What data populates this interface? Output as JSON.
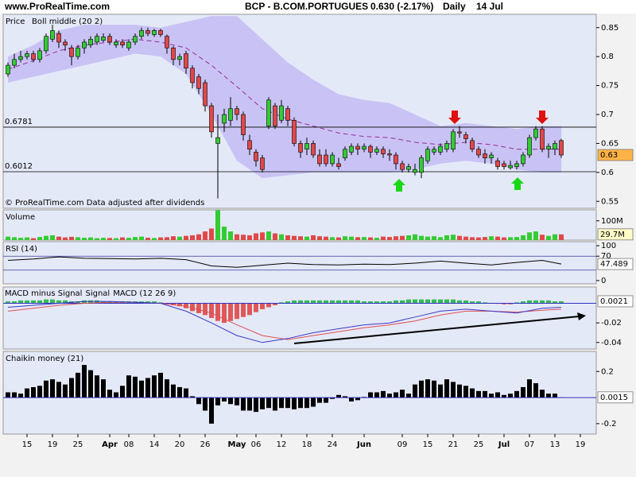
{
  "header": {
    "site": "www.ProRealTime.com",
    "instrument": "BCP - B.COM.PORTUGUES",
    "last": "0.630 (-2.17%)",
    "period": "Daily",
    "date": "14 Jul"
  },
  "chart_data": [
    {
      "type": "candlestick",
      "title": "Price",
      "subtitle": "Boll middle (20 2)",
      "note": "© ProRealTime.com  Data adjusted after dividends",
      "open": [
        0.77,
        0.785,
        0.795,
        0.8,
        0.805,
        0.795,
        0.81,
        0.83,
        0.84,
        0.825,
        0.815,
        0.8,
        0.815,
        0.82,
        0.825,
        0.828,
        0.835,
        0.82,
        0.825,
        0.815,
        0.825,
        0.835,
        0.845,
        0.838,
        0.845,
        0.835,
        0.815,
        0.795,
        0.805,
        0.78,
        0.765,
        0.755,
        0.715,
        0.65,
        0.685,
        0.69,
        0.71,
        0.7,
        0.655,
        0.635,
        0.625,
        0.68,
        0.715,
        0.69,
        0.71,
        0.69,
        0.65,
        0.64,
        0.65,
        0.63,
        0.63,
        0.615,
        0.615,
        0.625,
        0.635,
        0.645,
        0.64,
        0.645,
        0.635,
        0.64,
        0.632,
        0.63,
        0.615,
        0.605,
        0.6,
        0.6,
        0.62,
        0.635,
        0.635,
        0.64,
        0.64,
        0.67,
        0.665,
        0.655,
        0.64,
        0.632,
        0.625,
        0.62,
        0.615,
        0.608,
        0.61,
        0.615,
        0.63,
        0.66,
        0.675,
        0.64,
        0.64,
        0.655
      ],
      "high": [
        0.79,
        0.805,
        0.81,
        0.81,
        0.81,
        0.815,
        0.84,
        0.855,
        0.845,
        0.83,
        0.82,
        0.82,
        0.83,
        0.835,
        0.84,
        0.84,
        0.84,
        0.83,
        0.83,
        0.83,
        0.84,
        0.85,
        0.85,
        0.848,
        0.848,
        0.838,
        0.818,
        0.805,
        0.81,
        0.785,
        0.77,
        0.76,
        0.72,
        0.7,
        0.71,
        0.73,
        0.715,
        0.705,
        0.665,
        0.64,
        0.63,
        0.73,
        0.72,
        0.725,
        0.715,
        0.695,
        0.655,
        0.66,
        0.655,
        0.64,
        0.64,
        0.635,
        0.625,
        0.645,
        0.65,
        0.65,
        0.65,
        0.648,
        0.645,
        0.645,
        0.64,
        0.635,
        0.62,
        0.615,
        0.615,
        0.63,
        0.645,
        0.645,
        0.65,
        0.655,
        0.675,
        0.68,
        0.67,
        0.66,
        0.645,
        0.64,
        0.635,
        0.625,
        0.62,
        0.62,
        0.62,
        0.635,
        0.665,
        0.68,
        0.68,
        0.65,
        0.655,
        0.658
      ],
      "low": [
        0.765,
        0.78,
        0.79,
        0.795,
        0.79,
        0.79,
        0.805,
        0.825,
        0.815,
        0.81,
        0.785,
        0.795,
        0.805,
        0.815,
        0.82,
        0.825,
        0.82,
        0.815,
        0.815,
        0.81,
        0.82,
        0.83,
        0.835,
        0.834,
        0.834,
        0.805,
        0.785,
        0.785,
        0.77,
        0.745,
        0.735,
        0.705,
        0.66,
        0.555,
        0.67,
        0.68,
        0.69,
        0.655,
        0.63,
        0.61,
        0.6,
        0.675,
        0.675,
        0.685,
        0.68,
        0.645,
        0.625,
        0.63,
        0.625,
        0.61,
        0.61,
        0.61,
        0.605,
        0.62,
        0.63,
        0.63,
        0.635,
        0.625,
        0.63,
        0.625,
        0.62,
        0.605,
        0.6,
        0.6,
        0.595,
        0.59,
        0.615,
        0.63,
        0.63,
        0.635,
        0.635,
        0.66,
        0.65,
        0.635,
        0.625,
        0.615,
        0.615,
        0.605,
        0.605,
        0.605,
        0.605,
        0.61,
        0.625,
        0.655,
        0.635,
        0.625,
        0.63,
        0.625
      ],
      "close": [
        0.785,
        0.795,
        0.8,
        0.805,
        0.795,
        0.81,
        0.835,
        0.845,
        0.825,
        0.82,
        0.8,
        0.815,
        0.825,
        0.83,
        0.835,
        0.834,
        0.825,
        0.825,
        0.82,
        0.825,
        0.835,
        0.845,
        0.84,
        0.845,
        0.838,
        0.815,
        0.795,
        0.8,
        0.78,
        0.755,
        0.745,
        0.715,
        0.67,
        0.66,
        0.7,
        0.71,
        0.7,
        0.665,
        0.64,
        0.62,
        0.605,
        0.725,
        0.68,
        0.715,
        0.69,
        0.65,
        0.635,
        0.65,
        0.63,
        0.615,
        0.615,
        0.63,
        0.61,
        0.64,
        0.645,
        0.64,
        0.645,
        0.635,
        0.64,
        0.632,
        0.63,
        0.615,
        0.605,
        0.61,
        0.605,
        0.625,
        0.64,
        0.64,
        0.645,
        0.65,
        0.67,
        0.668,
        0.658,
        0.64,
        0.63,
        0.625,
        0.63,
        0.61,
        0.61,
        0.612,
        0.615,
        0.63,
        0.66,
        0.675,
        0.64,
        0.645,
        0.65,
        0.63
      ],
      "up_color": "#33cc33",
      "down_color": "#e04848",
      "bands": {
        "x": [
          0,
          4,
          8,
          12,
          16,
          20,
          24,
          28,
          32,
          36,
          40,
          44,
          48,
          52,
          56,
          60,
          64,
          68,
          72,
          76,
          80,
          84,
          87
        ],
        "upper": [
          0.8,
          0.82,
          0.845,
          0.855,
          0.855,
          0.855,
          0.85,
          0.86,
          0.87,
          0.87,
          0.83,
          0.79,
          0.76,
          0.735,
          0.725,
          0.72,
          0.7,
          0.68,
          0.685,
          0.68,
          0.675,
          0.68,
          0.68
        ],
        "middle": [
          0.778,
          0.793,
          0.81,
          0.82,
          0.825,
          0.83,
          0.825,
          0.815,
          0.785,
          0.748,
          0.71,
          0.692,
          0.68,
          0.668,
          0.662,
          0.66,
          0.652,
          0.648,
          0.652,
          0.648,
          0.64,
          0.64,
          0.64
        ],
        "lower": [
          0.755,
          0.765,
          0.775,
          0.785,
          0.795,
          0.805,
          0.8,
          0.77,
          0.7,
          0.62,
          0.59,
          0.595,
          0.6,
          0.6,
          0.6,
          0.6,
          0.605,
          0.615,
          0.62,
          0.615,
          0.605,
          0.6,
          0.6
        ],
        "fill": "#c9c3f5",
        "middle_color": "#9a2a9a"
      },
      "hlines": [
        0.6781,
        0.6012
      ],
      "last_label": "0.63",
      "ylim": [
        0.538,
        0.873
      ],
      "yticks": [
        0.55,
        0.6,
        0.65,
        0.7,
        0.75,
        0.8,
        0.85
      ]
    },
    {
      "type": "bar",
      "title": "Volume",
      "title_color": "#e04848",
      "values": [
        18,
        15,
        12,
        14,
        10,
        16,
        22,
        25,
        18,
        14,
        17,
        15,
        12,
        14,
        10,
        12,
        11,
        10,
        14,
        12,
        16,
        18,
        12,
        11,
        14,
        15,
        20,
        18,
        22,
        25,
        30,
        45,
        60,
        155,
        70,
        45,
        30,
        28,
        25,
        35,
        40,
        45,
        35,
        30,
        25,
        22,
        20,
        18,
        25,
        20,
        18,
        15,
        14,
        20,
        18,
        15,
        16,
        14,
        12,
        18,
        16,
        20,
        22,
        25,
        30,
        22,
        18,
        20,
        15,
        25,
        28,
        22,
        18,
        15,
        14,
        16,
        20,
        18,
        14,
        15,
        16,
        25,
        40,
        45,
        28,
        22,
        30,
        29.7
      ],
      "up_color": "#33cc33",
      "down_color": "#e04848",
      "last_label": "29.7M",
      "ylim": [
        0,
        157
      ],
      "yticks": [
        {
          "value": 100,
          "label": "100M"
        }
      ]
    },
    {
      "type": "line",
      "title": "RSI (14)",
      "color": "#000000",
      "x": [
        0,
        4,
        8,
        12,
        16,
        20,
        24,
        28,
        32,
        36,
        40,
        44,
        48,
        52,
        56,
        60,
        64,
        68,
        72,
        76,
        80,
        84,
        87
      ],
      "values": [
        58,
        62,
        68,
        64,
        63,
        62,
        64,
        60,
        42,
        38,
        44,
        50,
        46,
        45,
        47,
        46,
        50,
        56,
        50,
        45,
        52,
        58,
        47.489
      ],
      "hlines": [
        70,
        30
      ],
      "last_label": "47.489",
      "ylim": [
        -9.3,
        111.6
      ],
      "yticks": [
        0,
        70,
        100
      ]
    },
    {
      "type": "macd",
      "zero_line": true,
      "series": [
        {
          "name": "MACD minus Signal",
          "color": "#33bb55",
          "negative_color": "#e05858",
          "values": [
            0.002,
            0.002,
            0.003,
            0.003,
            0.003,
            0.003,
            0.004,
            0.004,
            0.003,
            0.003,
            0.002,
            0.002,
            0.003,
            0.003,
            0.003,
            0.002,
            0.002,
            0.002,
            0.002,
            0.002,
            0.002,
            0.002,
            0.002,
            0.002,
            0.001,
            -0.001,
            -0.002,
            -0.003,
            -0.005,
            -0.008,
            -0.01,
            -0.012,
            -0.015,
            -0.018,
            -0.02,
            -0.018,
            -0.016,
            -0.014,
            -0.012,
            -0.009,
            -0.006,
            -0.004,
            -0.002,
            0.001,
            0.002,
            0.003,
            0.003,
            0.003,
            0.003,
            0.003,
            0.003,
            0.003,
            0.003,
            0.003,
            0.003,
            0.003,
            0.002,
            0.002,
            0.002,
            0.002,
            0.002,
            0.003,
            0.003,
            0.004,
            0.004,
            0.004,
            0.004,
            0.004,
            0.004,
            0.004,
            0.004,
            0.003,
            0.003,
            0.002,
            0.002,
            0.001,
            0.0005,
            -0.0005,
            -0.001,
            -0.001,
            0.001,
            0.002,
            0.003,
            0.003,
            0.003,
            0.003,
            0.002,
            0.0021
          ]
        },
        {
          "name": "Signal",
          "color": "#e05050",
          "x": [
            0,
            4,
            8,
            12,
            16,
            20,
            24,
            28,
            32,
            36,
            40,
            44,
            48,
            52,
            56,
            60,
            64,
            68,
            72,
            76,
            80,
            84,
            87
          ],
          "values": [
            -0.008,
            -0.005,
            -0.002,
            0.0,
            0.001,
            0.001,
            0.0,
            -0.003,
            -0.01,
            -0.022,
            -0.033,
            -0.037,
            -0.033,
            -0.029,
            -0.025,
            -0.022,
            -0.018,
            -0.012,
            -0.008,
            -0.008,
            -0.009,
            -0.007,
            -0.006
          ]
        },
        {
          "name": "MACD (12 26 9)",
          "color": "#3a3ac8",
          "x": [
            0,
            4,
            8,
            12,
            16,
            20,
            24,
            28,
            32,
            36,
            40,
            44,
            48,
            52,
            56,
            60,
            64,
            68,
            72,
            76,
            80,
            84,
            87
          ],
          "values": [
            -0.004,
            -0.002,
            0.0,
            0.002,
            0.002,
            0.001,
            0.0,
            -0.008,
            -0.02,
            -0.033,
            -0.04,
            -0.036,
            -0.03,
            -0.026,
            -0.022,
            -0.02,
            -0.014,
            -0.008,
            -0.006,
            -0.008,
            -0.01,
            -0.005,
            -0.004
          ]
        }
      ],
      "last_label": "0.0021",
      "ylim": [
        -0.0467,
        0.0167
      ],
      "yticks": [
        -0.04,
        -0.02
      ]
    },
    {
      "type": "bar",
      "title": "Chaikin money (21)",
      "color": "#000000",
      "zero_line": true,
      "values": [
        0.04,
        0.04,
        0.03,
        0.07,
        0.08,
        0.09,
        0.13,
        0.14,
        0.12,
        0.1,
        0.15,
        0.19,
        0.25,
        0.21,
        0.17,
        0.14,
        0.06,
        0.04,
        0.09,
        0.17,
        0.16,
        0.13,
        0.15,
        0.17,
        0.19,
        0.14,
        0.1,
        0.08,
        0.07,
        0.01,
        -0.05,
        -0.1,
        -0.2,
        -0.06,
        -0.03,
        -0.05,
        -0.06,
        -0.1,
        -0.1,
        -0.11,
        -0.09,
        -0.08,
        -0.1,
        -0.08,
        -0.08,
        -0.09,
        -0.08,
        -0.08,
        -0.07,
        -0.04,
        -0.04,
        -0.01,
        0.02,
        0.01,
        -0.03,
        -0.02,
        0.005,
        0.04,
        0.04,
        0.05,
        0.03,
        0.04,
        0.06,
        0.03,
        0.1,
        0.13,
        0.14,
        0.13,
        0.1,
        0.14,
        0.12,
        0.1,
        0.09,
        0.07,
        0.05,
        0.05,
        0.03,
        0.04,
        0.02,
        0.03,
        0.05,
        0.08,
        0.14,
        0.11,
        0.06,
        0.03,
        0.03,
        0.0015
      ],
      "last_label": "0.0015",
      "ylim": [
        -0.28,
        0.354
      ],
      "yticks": [
        -0.2,
        0.2
      ],
      "xlim": [
        -0.75,
        92.5
      ],
      "xticks": [
        {
          "value": 3,
          "label": "15"
        },
        {
          "value": 7,
          "label": "19"
        },
        {
          "value": 11,
          "label": "25"
        },
        {
          "value": 16,
          "label": "Apr"
        },
        {
          "value": 19,
          "label": "08"
        },
        {
          "value": 23,
          "label": "14"
        },
        {
          "value": 27,
          "label": "20"
        },
        {
          "value": 31,
          "label": "26"
        },
        {
          "value": 36,
          "label": "May"
        },
        {
          "value": 39,
          "label": "06"
        },
        {
          "value": 43,
          "label": "12"
        },
        {
          "value": 47,
          "label": "18"
        },
        {
          "value": 51,
          "label": "24"
        },
        {
          "value": 56,
          "label": "Jun"
        },
        {
          "value": 62,
          "label": "09"
        },
        {
          "value": 66,
          "label": "15"
        },
        {
          "value": 70,
          "label": "21"
        },
        {
          "value": 74,
          "label": "25"
        },
        {
          "value": 78,
          "label": "Jul"
        },
        {
          "value": 82,
          "label": "07"
        },
        {
          "value": 86,
          "label": "13"
        },
        {
          "value": 90,
          "label": "19"
        }
      ]
    }
  ]
}
